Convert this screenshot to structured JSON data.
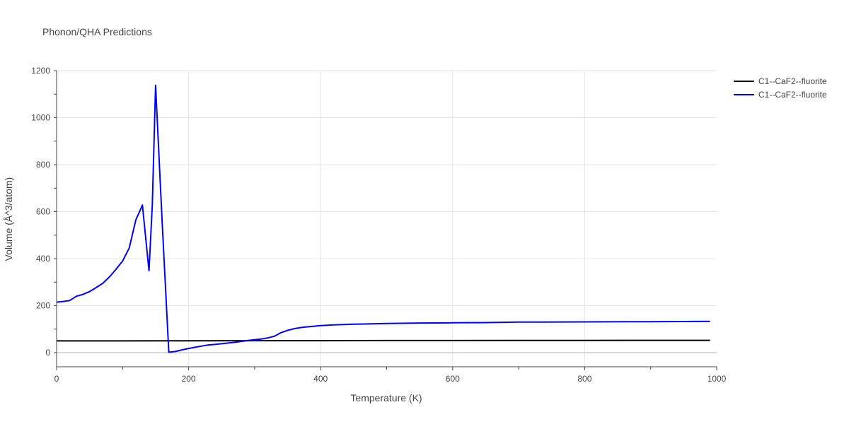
{
  "chart_data": {
    "type": "line",
    "title": "Phonon/QHA Predictions",
    "xlabel": "Temperature (K)",
    "ylabel": "Volume (Å^3/atom)",
    "xlim": [
      0,
      1000
    ],
    "ylim": [
      -60,
      1200
    ],
    "x_ticks": [
      0,
      200,
      400,
      600,
      800,
      1000
    ],
    "x_tick_labels": [
      "0",
      "200",
      "400",
      "600",
      "800",
      "1000"
    ],
    "y_ticks": [
      0,
      200,
      400,
      600,
      800,
      1000,
      1200
    ],
    "y_tick_labels": [
      "0",
      "200",
      "400",
      "600",
      "800",
      "1000",
      "1200"
    ],
    "grid": true,
    "legend_position": "top-right",
    "series": [
      {
        "name": "C1--CaF2--fluorite",
        "color": "#000000",
        "x": [
          0,
          100,
          200,
          300,
          400,
          500,
          600,
          700,
          800,
          900,
          990
        ],
        "y": [
          50,
          50,
          50.5,
          51,
          51,
          51.5,
          51.5,
          52,
          52,
          52.5,
          52.5
        ]
      },
      {
        "name": "C1--CaF2--fluorite",
        "color": "#0000ff",
        "x": [
          0,
          10,
          20,
          30,
          40,
          50,
          60,
          70,
          80,
          90,
          100,
          110,
          120,
          130,
          140,
          145,
          150,
          160,
          170,
          180,
          190,
          200,
          210,
          220,
          230,
          240,
          250,
          260,
          270,
          280,
          290,
          300,
          310,
          320,
          330,
          340,
          350,
          360,
          370,
          380,
          400,
          420,
          450,
          500,
          550,
          600,
          650,
          700,
          800,
          900,
          990
        ],
        "y": [
          215,
          218,
          222,
          240,
          248,
          260,
          277,
          295,
          322,
          355,
          390,
          445,
          565,
          628,
          348,
          630,
          1138,
          550,
          2,
          5,
          12,
          18,
          23,
          28,
          33,
          35,
          38,
          41,
          44,
          48,
          52,
          55,
          58,
          63,
          70,
          85,
          95,
          102,
          107,
          110,
          115,
          118,
          121,
          124,
          126,
          127,
          128,
          130,
          131,
          132,
          133
        ]
      }
    ]
  }
}
